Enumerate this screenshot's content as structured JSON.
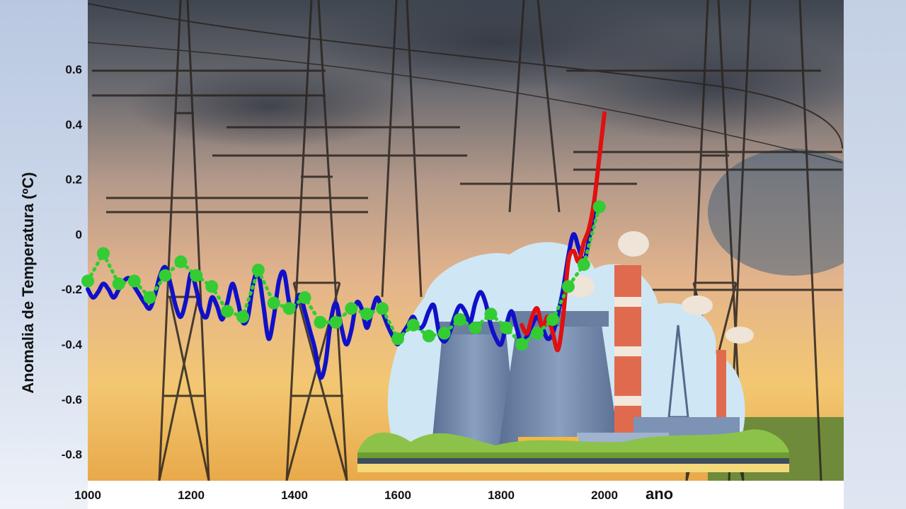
{
  "chart_data": {
    "type": "line",
    "title": "",
    "xlabel": "ano",
    "ylabel": "Anomalia de Temperatura  (ºC)",
    "xlim": [
      1000,
      2000
    ],
    "ylim": [
      -0.9,
      0.7
    ],
    "x_ticks": [
      "1000",
      "1200",
      "1400",
      "1600",
      "1800",
      "2000"
    ],
    "y_ticks": [
      "0.6",
      "0.4",
      "0.2",
      "0",
      "-0.2",
      "-0.4",
      "-0.6",
      "-0.8"
    ],
    "grid": false,
    "series": [
      {
        "color": "#1010c8",
        "style": "solid",
        "x": [
          1000,
          1010,
          1020,
          1030,
          1040,
          1050,
          1060,
          1070,
          1080,
          1090,
          1100,
          1110,
          1120,
          1130,
          1140,
          1150,
          1160,
          1170,
          1180,
          1190,
          1200,
          1210,
          1220,
          1230,
          1240,
          1250,
          1260,
          1270,
          1280,
          1290,
          1300,
          1310,
          1320,
          1330,
          1340,
          1350,
          1360,
          1370,
          1380,
          1390,
          1400,
          1410,
          1420,
          1430,
          1440,
          1450,
          1460,
          1470,
          1480,
          1490,
          1500,
          1510,
          1520,
          1530,
          1540,
          1550,
          1560,
          1570,
          1580,
          1590,
          1600,
          1610,
          1620,
          1630,
          1640,
          1650,
          1660,
          1670,
          1680,
          1690,
          1700,
          1710,
          1720,
          1730,
          1740,
          1750,
          1760,
          1770,
          1780,
          1790,
          1800,
          1810,
          1820,
          1830,
          1840,
          1850,
          1860,
          1870,
          1880,
          1890,
          1900,
          1910,
          1920,
          1930,
          1940,
          1950,
          1960,
          1970,
          1980
        ],
        "y": [
          -0.2,
          -0.23,
          -0.21,
          -0.18,
          -0.2,
          -0.23,
          -0.2,
          -0.17,
          -0.16,
          -0.19,
          -0.22,
          -0.25,
          -0.27,
          -0.22,
          -0.15,
          -0.12,
          -0.18,
          -0.26,
          -0.3,
          -0.24,
          -0.14,
          -0.2,
          -0.28,
          -0.3,
          -0.23,
          -0.26,
          -0.31,
          -0.25,
          -0.18,
          -0.24,
          -0.32,
          -0.3,
          -0.18,
          -0.14,
          -0.26,
          -0.38,
          -0.3,
          -0.17,
          -0.14,
          -0.25,
          -0.27,
          -0.22,
          -0.28,
          -0.35,
          -0.42,
          -0.52,
          -0.47,
          -0.32,
          -0.25,
          -0.33,
          -0.4,
          -0.35,
          -0.25,
          -0.27,
          -0.34,
          -0.28,
          -0.23,
          -0.28,
          -0.33,
          -0.37,
          -0.4,
          -0.36,
          -0.33,
          -0.3,
          -0.34,
          -0.33,
          -0.28,
          -0.26,
          -0.36,
          -0.39,
          -0.36,
          -0.3,
          -0.26,
          -0.28,
          -0.32,
          -0.25,
          -0.21,
          -0.25,
          -0.33,
          -0.38,
          -0.4,
          -0.33,
          -0.28,
          -0.34,
          -0.4,
          -0.37,
          -0.33,
          -0.3,
          -0.34,
          -0.38,
          -0.36,
          -0.29,
          -0.2,
          -0.08,
          0.0,
          -0.05,
          -0.1,
          -0.02,
          0.08
        ]
      },
      {
        "color": "#e01010",
        "style": "solid",
        "x": [
          1840,
          1850,
          1860,
          1870,
          1880,
          1890,
          1900,
          1910,
          1920,
          1930,
          1940,
          1950,
          1960,
          1970,
          1980,
          1990,
          2000
        ],
        "y": [
          -0.33,
          -0.36,
          -0.3,
          -0.27,
          -0.34,
          -0.3,
          -0.36,
          -0.42,
          -0.3,
          -0.1,
          -0.06,
          -0.1,
          -0.03,
          0.02,
          0.12,
          0.28,
          0.44
        ]
      },
      {
        "color": "#33cc33",
        "style": "dotted-markers",
        "x": [
          1000,
          1030,
          1060,
          1090,
          1120,
          1150,
          1180,
          1210,
          1240,
          1270,
          1300,
          1330,
          1360,
          1390,
          1420,
          1450,
          1480,
          1510,
          1540,
          1570,
          1600,
          1630,
          1660,
          1690,
          1720,
          1750,
          1780,
          1810,
          1840,
          1870,
          1900,
          1930,
          1960,
          1990
        ],
        "y": [
          -0.17,
          -0.07,
          -0.18,
          -0.17,
          -0.23,
          -0.15,
          -0.1,
          -0.15,
          -0.19,
          -0.28,
          -0.3,
          -0.13,
          -0.25,
          -0.27,
          -0.23,
          -0.32,
          -0.32,
          -0.27,
          -0.29,
          -0.27,
          -0.38,
          -0.33,
          -0.37,
          -0.36,
          -0.31,
          -0.34,
          -0.29,
          -0.34,
          -0.4,
          -0.36,
          -0.31,
          -0.19,
          -0.11,
          0.1
        ]
      }
    ]
  }
}
